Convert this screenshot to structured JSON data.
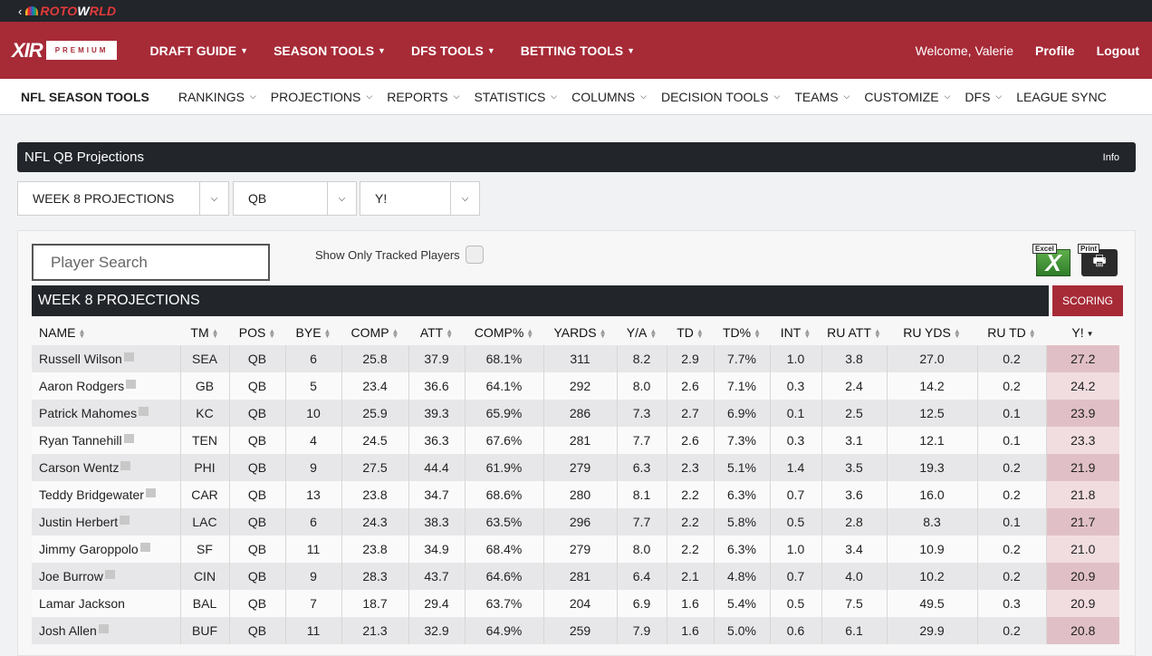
{
  "topbar": {
    "back": "‹",
    "logo_a": "ROTO",
    "logo_b": "W",
    "logo_c": "RLD"
  },
  "mainnav": {
    "brand": "XIR",
    "brand_tag": "PREMIUM",
    "items": [
      "DRAFT GUIDE",
      "SEASON TOOLS",
      "DFS TOOLS",
      "BETTING TOOLS"
    ],
    "welcome": "Welcome, Valerie",
    "profile": "Profile",
    "logout": "Logout"
  },
  "subnav": {
    "title": "NFL SEASON TOOLS",
    "items": [
      "RANKINGS",
      "PROJECTIONS",
      "REPORTS",
      "STATISTICS",
      "COLUMNS",
      "DECISION TOOLS",
      "TEAMS",
      "CUSTOMIZE",
      "DFS"
    ],
    "league_sync": "LEAGUE SYNC"
  },
  "panel": {
    "title": "NFL QB Projections",
    "info": "Info"
  },
  "filters": {
    "week": "WEEK 8 PROJECTIONS",
    "position": "QB",
    "scoring": "Y!"
  },
  "controls": {
    "search_placeholder": "Player Search",
    "tracked_label": "Show Only Tracked Players",
    "excel_label": "Excel",
    "print_label": "Print"
  },
  "table": {
    "title": "WEEK 8 PROJECTIONS",
    "scoring_button": "SCORING",
    "columns": [
      "NAME",
      "TM",
      "POS",
      "BYE",
      "COMP",
      "ATT",
      "COMP%",
      "YARDS",
      "Y/A",
      "TD",
      "TD%",
      "INT",
      "RU ATT",
      "RU YDS",
      "RU TD",
      "Y!"
    ],
    "rows": [
      [
        "Russell Wilson",
        "SEA",
        "QB",
        "6",
        "25.8",
        "37.9",
        "68.1%",
        "311",
        "8.2",
        "2.9",
        "7.7%",
        "1.0",
        "3.8",
        "27.0",
        "0.2",
        "27.2"
      ],
      [
        "Aaron Rodgers",
        "GB",
        "QB",
        "5",
        "23.4",
        "36.6",
        "64.1%",
        "292",
        "8.0",
        "2.6",
        "7.1%",
        "0.3",
        "2.4",
        "14.2",
        "0.2",
        "24.2"
      ],
      [
        "Patrick Mahomes",
        "KC",
        "QB",
        "10",
        "25.9",
        "39.3",
        "65.9%",
        "286",
        "7.3",
        "2.7",
        "6.9%",
        "0.1",
        "2.5",
        "12.5",
        "0.1",
        "23.9"
      ],
      [
        "Ryan Tannehill",
        "TEN",
        "QB",
        "4",
        "24.5",
        "36.3",
        "67.6%",
        "281",
        "7.7",
        "2.6",
        "7.3%",
        "0.3",
        "3.1",
        "12.1",
        "0.1",
        "23.3"
      ],
      [
        "Carson Wentz",
        "PHI",
        "QB",
        "9",
        "27.5",
        "44.4",
        "61.9%",
        "279",
        "6.3",
        "2.3",
        "5.1%",
        "1.4",
        "3.5",
        "19.3",
        "0.2",
        "21.9"
      ],
      [
        "Teddy Bridgewater",
        "CAR",
        "QB",
        "13",
        "23.8",
        "34.7",
        "68.6%",
        "280",
        "8.1",
        "2.2",
        "6.3%",
        "0.7",
        "3.6",
        "16.0",
        "0.2",
        "21.8"
      ],
      [
        "Justin Herbert",
        "LAC",
        "QB",
        "6",
        "24.3",
        "38.3",
        "63.5%",
        "296",
        "7.7",
        "2.2",
        "5.8%",
        "0.5",
        "2.8",
        "8.3",
        "0.1",
        "21.7"
      ],
      [
        "Jimmy Garoppolo",
        "SF",
        "QB",
        "11",
        "23.8",
        "34.9",
        "68.4%",
        "279",
        "8.0",
        "2.2",
        "6.3%",
        "1.0",
        "3.4",
        "10.9",
        "0.2",
        "21.0"
      ],
      [
        "Joe Burrow",
        "CIN",
        "QB",
        "9",
        "28.3",
        "43.7",
        "64.6%",
        "281",
        "6.4",
        "2.1",
        "4.8%",
        "0.7",
        "4.0",
        "10.2",
        "0.2",
        "20.9"
      ],
      [
        "Lamar Jackson",
        "BAL",
        "QB",
        "7",
        "18.7",
        "29.4",
        "63.7%",
        "204",
        "6.9",
        "1.6",
        "5.4%",
        "0.5",
        "7.5",
        "49.5",
        "0.3",
        "20.9"
      ],
      [
        "Josh Allen",
        "BUF",
        "QB",
        "11",
        "21.3",
        "32.9",
        "64.9%",
        "259",
        "7.9",
        "1.6",
        "5.0%",
        "0.6",
        "6.1",
        "29.9",
        "0.2",
        "20.8"
      ]
    ],
    "has_note": [
      true,
      true,
      true,
      true,
      true,
      true,
      true,
      true,
      true,
      false,
      true
    ]
  },
  "colors": {
    "brand_red": "#a72a37",
    "dark": "#22262b"
  }
}
